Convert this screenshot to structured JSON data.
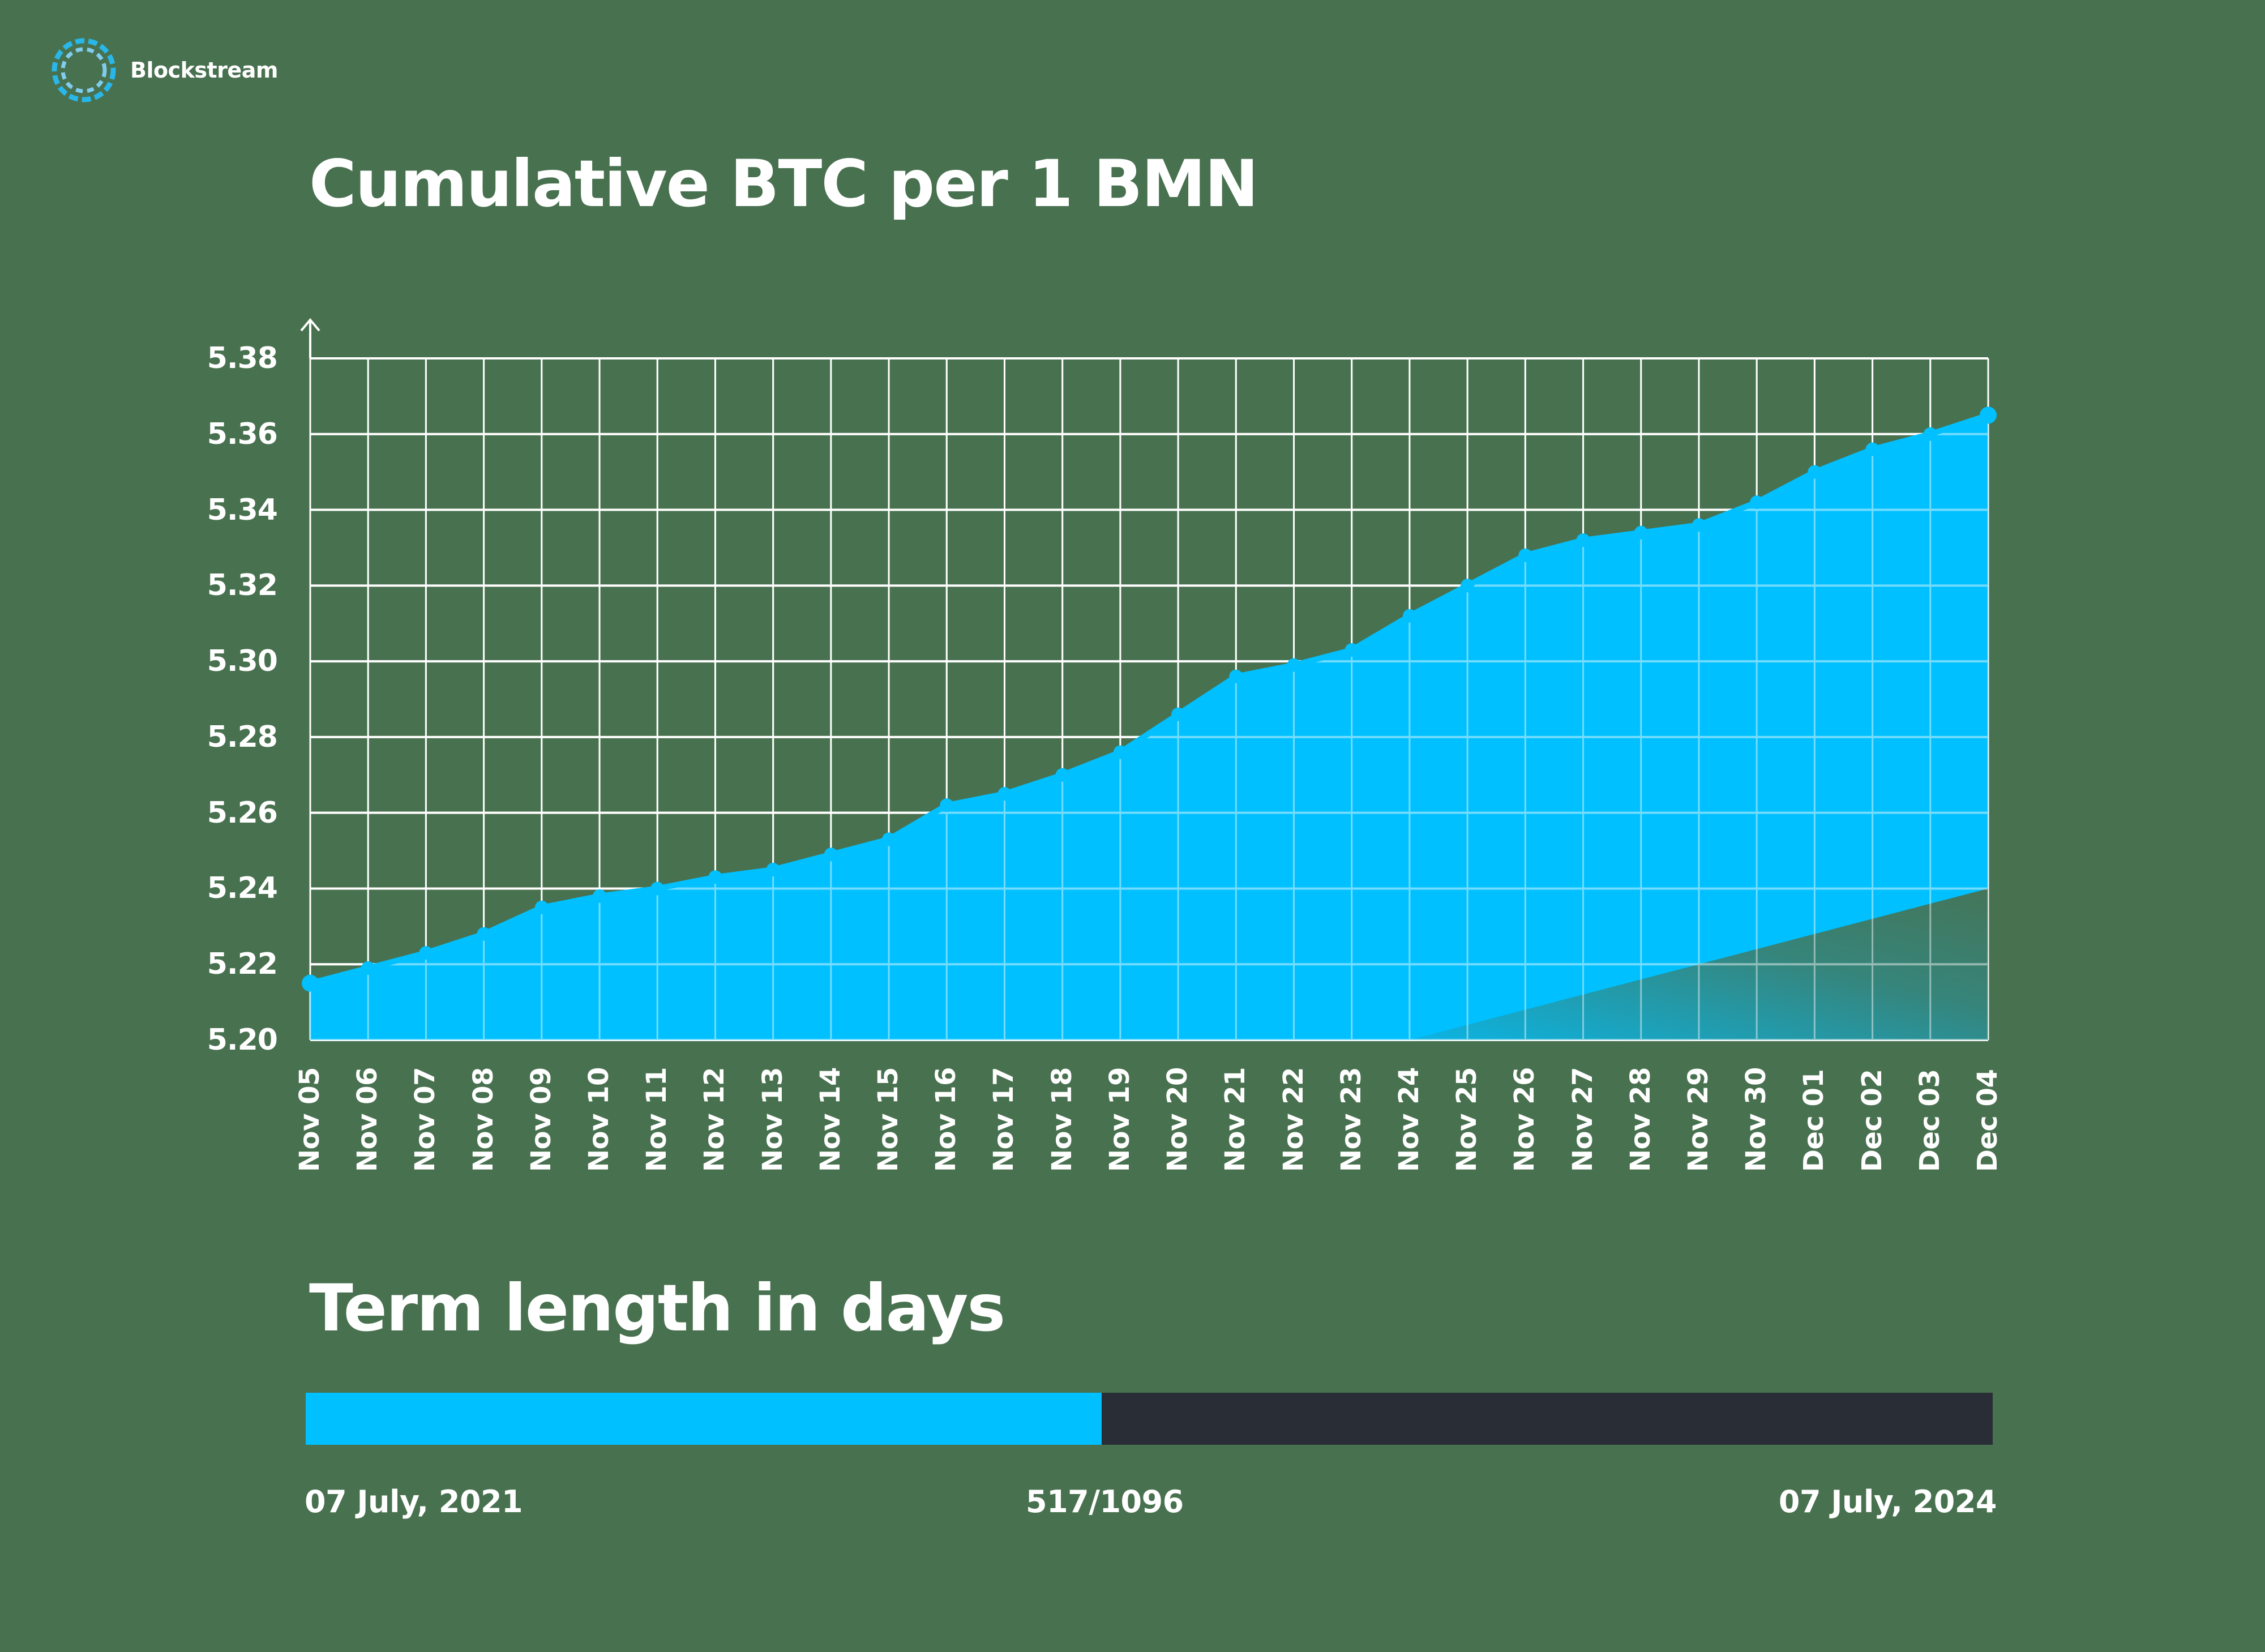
{
  "brand": {
    "name": "Blockstream",
    "icon": "blockstream-ring-logo-icon"
  },
  "colors": {
    "background": "#48714F",
    "accent": "#00C0FF",
    "track": "#282D36",
    "grid": "#FFFFFF",
    "text": "#FFFFFF"
  },
  "chart_data": {
    "type": "area",
    "title": "Cumulative BTC per 1 BMN",
    "xlabel": "",
    "ylabel": "",
    "ylim": [
      5.2,
      5.38
    ],
    "yticks": [
      "5.38",
      "5.36",
      "5.34",
      "5.32",
      "5.30",
      "5.28",
      "5.26",
      "5.24",
      "5.22",
      "5.20"
    ],
    "grid": true,
    "legend": null,
    "categories": [
      "Nov 05",
      "Nov 06",
      "Nov 07",
      "Nov 08",
      "Nov 09",
      "Nov 10",
      "Nov 11",
      "Nov 12",
      "Nov 13",
      "Nov 14",
      "Nov 15",
      "Nov 16",
      "Nov 17",
      "Nov 18",
      "Nov 19",
      "Nov 20",
      "Nov 21",
      "Nov 22",
      "Nov 23",
      "Nov 24",
      "Nov 25",
      "Nov 26",
      "Nov 27",
      "Nov 28",
      "Nov 29",
      "Nov 30",
      "Dec 01",
      "Dec 02",
      "Dec 03",
      "Dec 04"
    ],
    "series": [
      {
        "name": "Cumulative BTC per 1 BMN",
        "values": [
          5.215,
          5.219,
          5.223,
          5.228,
          5.235,
          5.238,
          5.24,
          5.243,
          5.245,
          5.249,
          5.253,
          5.262,
          5.265,
          5.27,
          5.276,
          5.286,
          5.296,
          5.299,
          5.303,
          5.312,
          5.32,
          5.328,
          5.332,
          5.334,
          5.336,
          5.342,
          5.35,
          5.356,
          5.36,
          5.365
        ]
      }
    ]
  },
  "term": {
    "title": "Term length in days",
    "start_label": "07 July, 2021",
    "end_label": "07 July, 2024",
    "progress_label": "517/1096",
    "elapsed_days": 517,
    "total_days": 1096,
    "progress_percent": 47.2
  }
}
